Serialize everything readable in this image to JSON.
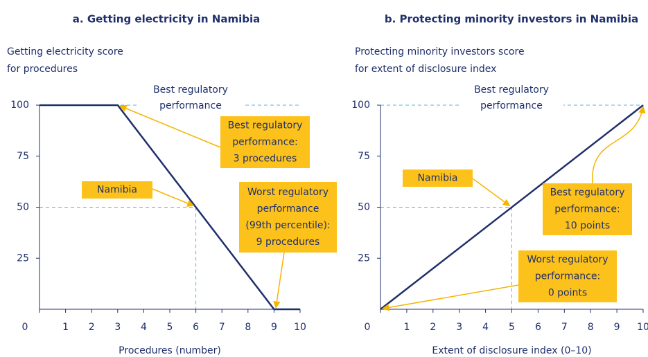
{
  "chart_data": [
    {
      "type": "line",
      "title": "a. Getting electricity in Namibia",
      "ylabel": [
        "Getting electricity score",
        "for procedures"
      ],
      "xlabel": "Procedures (number)",
      "x": [
        0,
        3,
        9,
        10
      ],
      "values": [
        100,
        100,
        0,
        0
      ],
      "color": "#1f2f6b",
      "xlim": [
        0,
        10
      ],
      "ylim": [
        0,
        100
      ],
      "xticks": [
        0,
        1,
        2,
        3,
        4,
        5,
        6,
        7,
        8,
        9,
        10
      ],
      "yticks": [
        25,
        50,
        75,
        100
      ],
      "highlight": {
        "x": 6,
        "y": 50
      },
      "annotations": [
        {
          "lines": [
            "Best regulatory",
            "performance"
          ]
        },
        {
          "lines": [
            "Namibia"
          ]
        },
        {
          "lines": [
            "Best regulatory",
            "performance:",
            "3 procedures"
          ]
        },
        {
          "lines": [
            "Worst regulatory",
            "performance",
            "(99th percentile):",
            "9 procedures"
          ]
        }
      ]
    },
    {
      "type": "line",
      "title": "b. Protecting minority investors in Namibia",
      "ylabel": [
        "Protecting minority investors score",
        "for extent of disclosure index"
      ],
      "xlabel": "Extent of disclosure index (0–10)",
      "x": [
        0,
        10
      ],
      "values": [
        0,
        100
      ],
      "color": "#1f2f6b",
      "xlim": [
        0,
        10
      ],
      "ylim": [
        0,
        100
      ],
      "xticks": [
        0,
        1,
        2,
        3,
        4,
        5,
        6,
        7,
        8,
        9,
        10
      ],
      "yticks": [
        25,
        50,
        75,
        100
      ],
      "highlight": {
        "x": 5,
        "y": 50
      },
      "annotations": [
        {
          "lines": [
            "Best regulatory",
            "performance"
          ]
        },
        {
          "lines": [
            "Namibia"
          ]
        },
        {
          "lines": [
            "Best regulatory",
            "performance:",
            "10 points"
          ]
        },
        {
          "lines": [
            "Worst regulatory",
            "performance:",
            "0 points"
          ]
        }
      ]
    }
  ]
}
